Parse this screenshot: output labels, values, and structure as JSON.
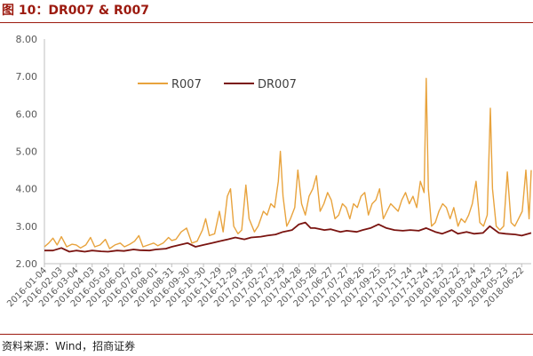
{
  "page": {
    "title": "图 10：DR007 & R007",
    "source": "资料来源：Wind，招商证券"
  },
  "chart_data": {
    "type": "line",
    "title": "",
    "xlabel": "",
    "ylabel": "",
    "ylim": [
      2.0,
      8.0
    ],
    "yticks": [
      "2.00",
      "3.00",
      "4.00",
      "5.00",
      "6.00",
      "7.00",
      "8.00"
    ],
    "x_start": "2016-01-04",
    "x_end": "2018-07-10",
    "x_tick_labels": [
      "2016-01-04",
      "2016-02-03",
      "2016-03-04",
      "2016-04-03",
      "2016-05-03",
      "2016-06-02",
      "2016-07-02",
      "2016-08-01",
      "2016-08-31",
      "2016-09-30",
      "2016-10-30",
      "2016-11-29",
      "2016-12-29",
      "2017-01-28",
      "2017-02-27",
      "2017-03-29",
      "2017-04-28",
      "2017-05-28",
      "2017-06-27",
      "2017-07-27",
      "2017-08-26",
      "2017-09-25",
      "2017-10-25",
      "2017-11-24",
      "2017-12-24",
      "2018-01-23",
      "2018-02-22",
      "2018-03-24",
      "2018-04-23",
      "2018-05-23",
      "2018-06-22"
    ],
    "grid": false,
    "legend_position": "top-left",
    "series": [
      {
        "name": "R007",
        "color": "#e8a33d",
        "points": [
          [
            "2016-01-04",
            2.45
          ],
          [
            "2016-01-12",
            2.55
          ],
          [
            "2016-01-20",
            2.68
          ],
          [
            "2016-01-28",
            2.5
          ],
          [
            "2016-02-05",
            2.72
          ],
          [
            "2016-02-15",
            2.45
          ],
          [
            "2016-02-25",
            2.52
          ],
          [
            "2016-03-04",
            2.5
          ],
          [
            "2016-03-12",
            2.42
          ],
          [
            "2016-03-22",
            2.5
          ],
          [
            "2016-03-31",
            2.7
          ],
          [
            "2016-04-08",
            2.45
          ],
          [
            "2016-04-18",
            2.5
          ],
          [
            "2016-04-28",
            2.65
          ],
          [
            "2016-05-06",
            2.4
          ],
          [
            "2016-05-16",
            2.5
          ],
          [
            "2016-05-26",
            2.55
          ],
          [
            "2016-06-03",
            2.45
          ],
          [
            "2016-06-13",
            2.52
          ],
          [
            "2016-06-22",
            2.6
          ],
          [
            "2016-06-30",
            2.75
          ],
          [
            "2016-07-08",
            2.45
          ],
          [
            "2016-07-18",
            2.5
          ],
          [
            "2016-07-28",
            2.55
          ],
          [
            "2016-08-05",
            2.48
          ],
          [
            "2016-08-15",
            2.55
          ],
          [
            "2016-08-25",
            2.7
          ],
          [
            "2016-08-31",
            2.62
          ],
          [
            "2016-09-08",
            2.65
          ],
          [
            "2016-09-18",
            2.85
          ],
          [
            "2016-09-28",
            2.95
          ],
          [
            "2016-10-08",
            2.55
          ],
          [
            "2016-10-18",
            2.6
          ],
          [
            "2016-10-28",
            2.9
          ],
          [
            "2016-11-03",
            3.2
          ],
          [
            "2016-11-10",
            2.75
          ],
          [
            "2016-11-20",
            2.8
          ],
          [
            "2016-11-29",
            3.4
          ],
          [
            "2016-12-06",
            2.85
          ],
          [
            "2016-12-14",
            3.8
          ],
          [
            "2016-12-20",
            4.0
          ],
          [
            "2016-12-26",
            3.0
          ],
          [
            "2017-01-03",
            2.8
          ],
          [
            "2017-01-10",
            2.9
          ],
          [
            "2017-01-18",
            4.1
          ],
          [
            "2017-01-24",
            3.2
          ],
          [
            "2017-02-03",
            2.85
          ],
          [
            "2017-02-10",
            3.0
          ],
          [
            "2017-02-20",
            3.4
          ],
          [
            "2017-02-27",
            3.3
          ],
          [
            "2017-03-06",
            3.6
          ],
          [
            "2017-03-13",
            3.5
          ],
          [
            "2017-03-20",
            4.2
          ],
          [
            "2017-03-24",
            5.0
          ],
          [
            "2017-03-29",
            3.8
          ],
          [
            "2017-04-05",
            3.0
          ],
          [
            "2017-04-12",
            3.2
          ],
          [
            "2017-04-20",
            3.5
          ],
          [
            "2017-04-26",
            4.5
          ],
          [
            "2017-05-03",
            3.6
          ],
          [
            "2017-05-10",
            3.3
          ],
          [
            "2017-05-17",
            3.8
          ],
          [
            "2017-05-24",
            4.0
          ],
          [
            "2017-05-31",
            4.35
          ],
          [
            "2017-06-07",
            3.4
          ],
          [
            "2017-06-14",
            3.6
          ],
          [
            "2017-06-21",
            3.9
          ],
          [
            "2017-06-28",
            3.7
          ],
          [
            "2017-07-05",
            3.2
          ],
          [
            "2017-07-12",
            3.3
          ],
          [
            "2017-07-19",
            3.6
          ],
          [
            "2017-07-26",
            3.5
          ],
          [
            "2017-08-02",
            3.2
          ],
          [
            "2017-08-09",
            3.6
          ],
          [
            "2017-08-16",
            3.5
          ],
          [
            "2017-08-23",
            3.8
          ],
          [
            "2017-08-30",
            3.9
          ],
          [
            "2017-09-06",
            3.3
          ],
          [
            "2017-09-13",
            3.6
          ],
          [
            "2017-09-20",
            3.7
          ],
          [
            "2017-09-27",
            4.0
          ],
          [
            "2017-10-04",
            3.2
          ],
          [
            "2017-10-11",
            3.4
          ],
          [
            "2017-10-18",
            3.6
          ],
          [
            "2017-10-25",
            3.5
          ],
          [
            "2017-11-01",
            3.4
          ],
          [
            "2017-11-08",
            3.7
          ],
          [
            "2017-11-15",
            3.9
          ],
          [
            "2017-11-22",
            3.6
          ],
          [
            "2017-11-29",
            3.8
          ],
          [
            "2017-12-06",
            3.5
          ],
          [
            "2017-12-13",
            4.2
          ],
          [
            "2017-12-20",
            3.9
          ],
          [
            "2017-12-24",
            6.95
          ],
          [
            "2017-12-28",
            4.0
          ],
          [
            "2018-01-03",
            3.0
          ],
          [
            "2018-01-10",
            3.1
          ],
          [
            "2018-01-17",
            3.4
          ],
          [
            "2018-01-24",
            3.6
          ],
          [
            "2018-01-31",
            3.5
          ],
          [
            "2018-02-07",
            3.2
          ],
          [
            "2018-02-14",
            3.5
          ],
          [
            "2018-02-22",
            3.0
          ],
          [
            "2018-02-28",
            3.2
          ],
          [
            "2018-03-07",
            3.1
          ],
          [
            "2018-03-14",
            3.3
          ],
          [
            "2018-03-21",
            3.6
          ],
          [
            "2018-03-28",
            4.2
          ],
          [
            "2018-04-04",
            3.1
          ],
          [
            "2018-04-11",
            3.0
          ],
          [
            "2018-04-18",
            3.3
          ],
          [
            "2018-04-24",
            6.15
          ],
          [
            "2018-04-28",
            4.0
          ],
          [
            "2018-05-05",
            3.0
          ],
          [
            "2018-05-12",
            2.9
          ],
          [
            "2018-05-19",
            3.0
          ],
          [
            "2018-05-26",
            4.45
          ],
          [
            "2018-06-02",
            3.1
          ],
          [
            "2018-06-09",
            3.0
          ],
          [
            "2018-06-16",
            3.2
          ],
          [
            "2018-06-23",
            3.4
          ],
          [
            "2018-06-30",
            4.5
          ],
          [
            "2018-07-06",
            3.2
          ],
          [
            "2018-07-10",
            4.5
          ]
        ]
      },
      {
        "name": "DR007",
        "color": "#7a1410",
        "points": [
          [
            "2016-01-04",
            2.35
          ],
          [
            "2016-01-20",
            2.35
          ],
          [
            "2016-02-05",
            2.42
          ],
          [
            "2016-02-20",
            2.32
          ],
          [
            "2016-03-04",
            2.35
          ],
          [
            "2016-03-20",
            2.32
          ],
          [
            "2016-04-03",
            2.35
          ],
          [
            "2016-04-20",
            2.33
          ],
          [
            "2016-05-03",
            2.32
          ],
          [
            "2016-05-20",
            2.35
          ],
          [
            "2016-06-02",
            2.34
          ],
          [
            "2016-06-20",
            2.38
          ],
          [
            "2016-07-02",
            2.36
          ],
          [
            "2016-07-20",
            2.35
          ],
          [
            "2016-08-01",
            2.38
          ],
          [
            "2016-08-20",
            2.4
          ],
          [
            "2016-08-31",
            2.45
          ],
          [
            "2016-09-15",
            2.5
          ],
          [
            "2016-09-30",
            2.55
          ],
          [
            "2016-10-15",
            2.45
          ],
          [
            "2016-10-30",
            2.5
          ],
          [
            "2016-11-15",
            2.55
          ],
          [
            "2016-11-29",
            2.6
          ],
          [
            "2016-12-15",
            2.65
          ],
          [
            "2016-12-29",
            2.7
          ],
          [
            "2017-01-15",
            2.65
          ],
          [
            "2017-01-28",
            2.7
          ],
          [
            "2017-02-15",
            2.72
          ],
          [
            "2017-02-27",
            2.75
          ],
          [
            "2017-03-15",
            2.78
          ],
          [
            "2017-03-29",
            2.85
          ],
          [
            "2017-04-15",
            2.9
          ],
          [
            "2017-04-28",
            3.05
          ],
          [
            "2017-05-10",
            3.1
          ],
          [
            "2017-05-20",
            2.95
          ],
          [
            "2017-05-28",
            2.95
          ],
          [
            "2017-06-15",
            2.9
          ],
          [
            "2017-06-27",
            2.92
          ],
          [
            "2017-07-15",
            2.85
          ],
          [
            "2017-07-27",
            2.88
          ],
          [
            "2017-08-15",
            2.85
          ],
          [
            "2017-08-26",
            2.9
          ],
          [
            "2017-09-10",
            2.95
          ],
          [
            "2017-09-25",
            3.05
          ],
          [
            "2017-10-10",
            2.95
          ],
          [
            "2017-10-25",
            2.9
          ],
          [
            "2017-11-10",
            2.88
          ],
          [
            "2017-11-24",
            2.9
          ],
          [
            "2017-12-10",
            2.88
          ],
          [
            "2017-12-24",
            2.95
          ],
          [
            "2018-01-10",
            2.85
          ],
          [
            "2018-01-23",
            2.8
          ],
          [
            "2018-02-10",
            2.9
          ],
          [
            "2018-02-22",
            2.8
          ],
          [
            "2018-03-10",
            2.85
          ],
          [
            "2018-03-24",
            2.8
          ],
          [
            "2018-04-10",
            2.82
          ],
          [
            "2018-04-23",
            3.0
          ],
          [
            "2018-05-10",
            2.82
          ],
          [
            "2018-05-23",
            2.8
          ],
          [
            "2018-06-10",
            2.78
          ],
          [
            "2018-06-22",
            2.75
          ],
          [
            "2018-07-10",
            2.82
          ]
        ]
      }
    ]
  }
}
